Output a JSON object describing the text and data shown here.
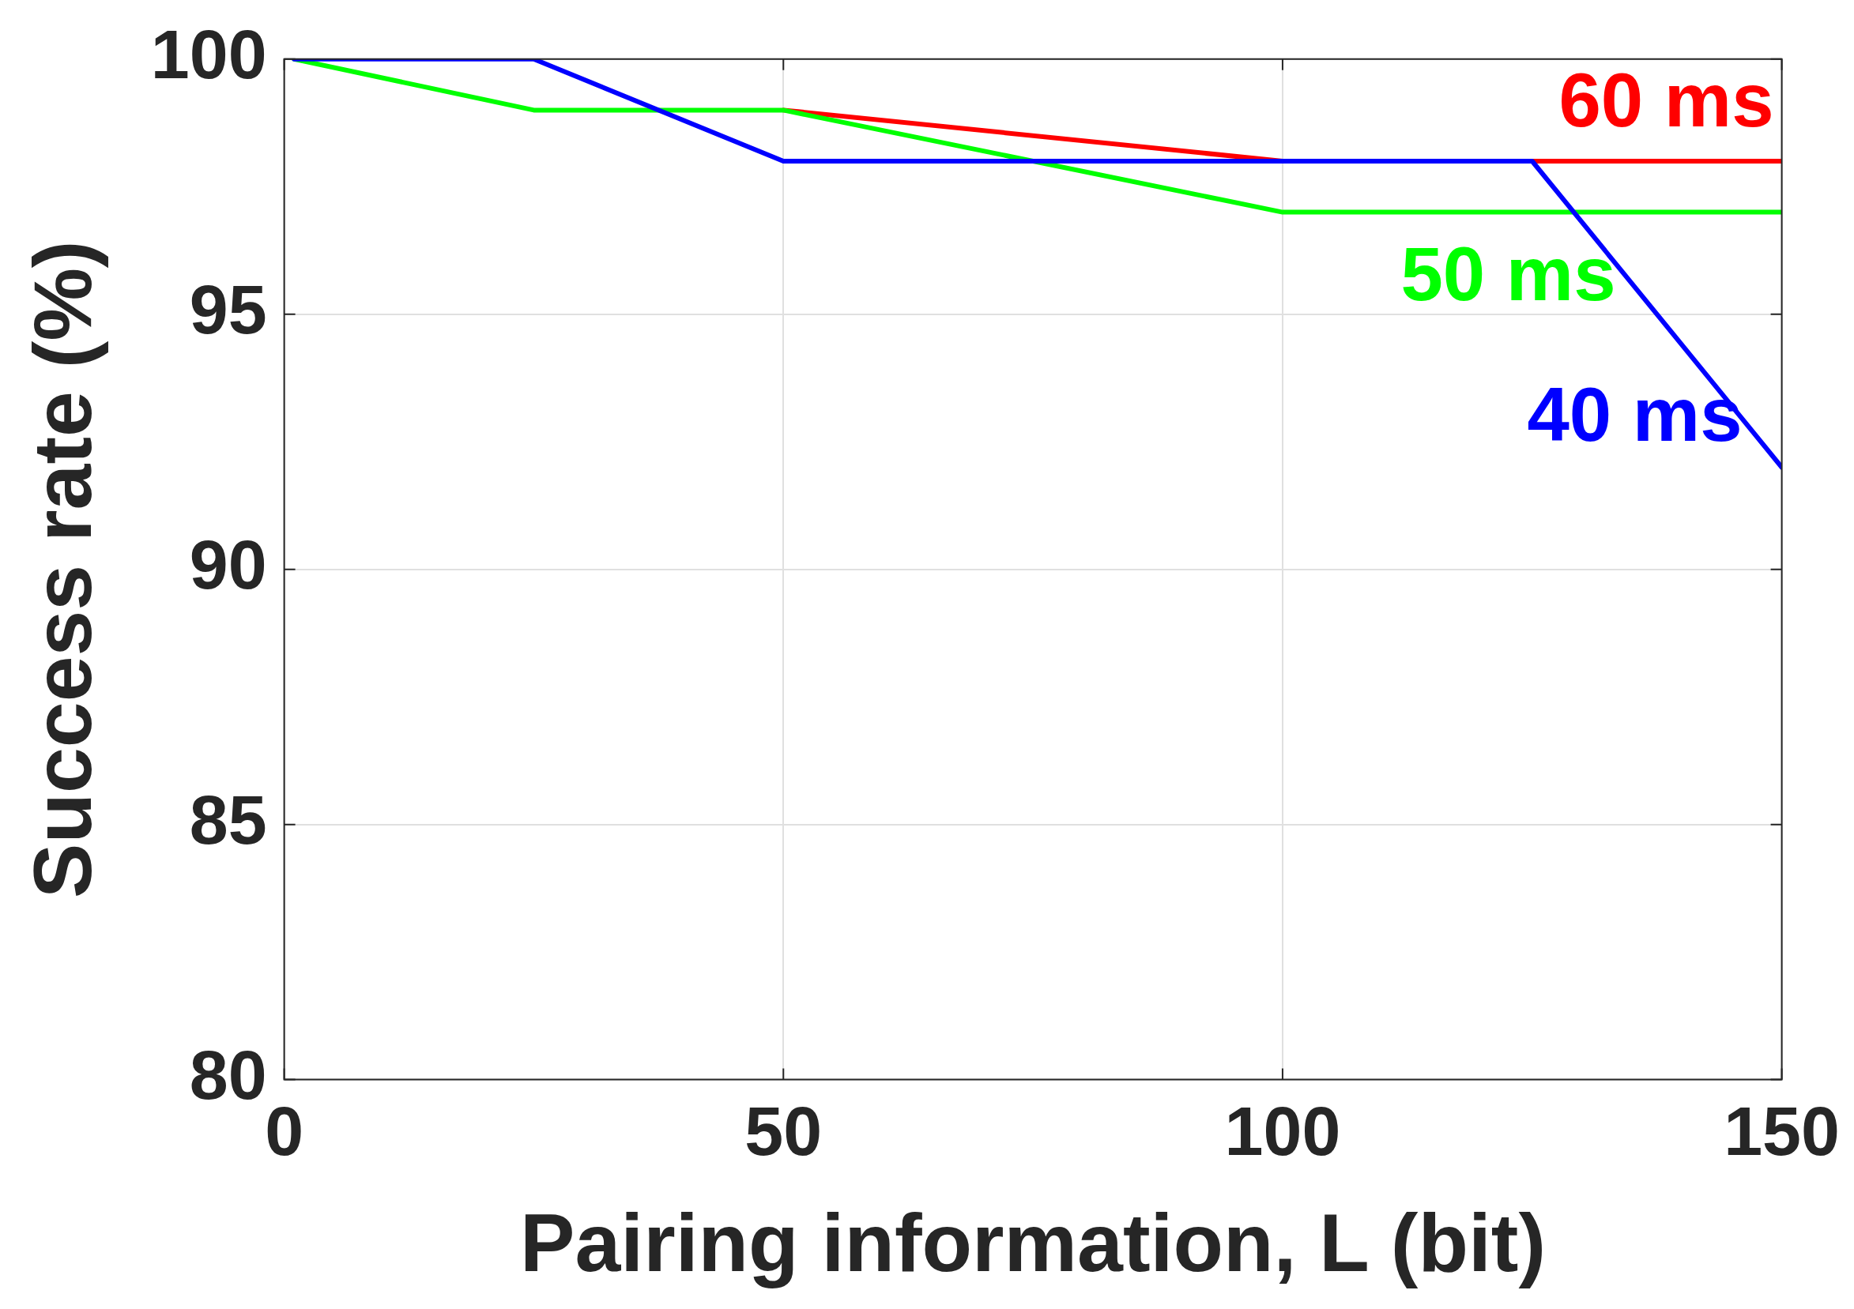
{
  "chart_data": {
    "type": "line",
    "xlabel": "Pairing information, L (bit)",
    "ylabel": "Success rate (%)",
    "x": [
      1,
      25,
      50,
      100,
      125,
      150
    ],
    "series": [
      {
        "name": "60 ms",
        "color": "#ff0000",
        "values": [
          null,
          null,
          99,
          98,
          98,
          98
        ]
      },
      {
        "name": "50 ms",
        "color": "#00ff00",
        "values": [
          100,
          99,
          99,
          97,
          97,
          97
        ]
      },
      {
        "name": "40 ms",
        "color": "#0000ff",
        "values": [
          100,
          100,
          98,
          98,
          98,
          92
        ]
      }
    ],
    "xlim": [
      0,
      150
    ],
    "xticks": [
      0,
      50,
      100,
      150
    ],
    "ylim": [
      80,
      100
    ],
    "yticks": [
      80,
      85,
      90,
      95,
      100
    ],
    "grid": true,
    "legend": false,
    "marker": "none",
    "line_style": "solid"
  }
}
